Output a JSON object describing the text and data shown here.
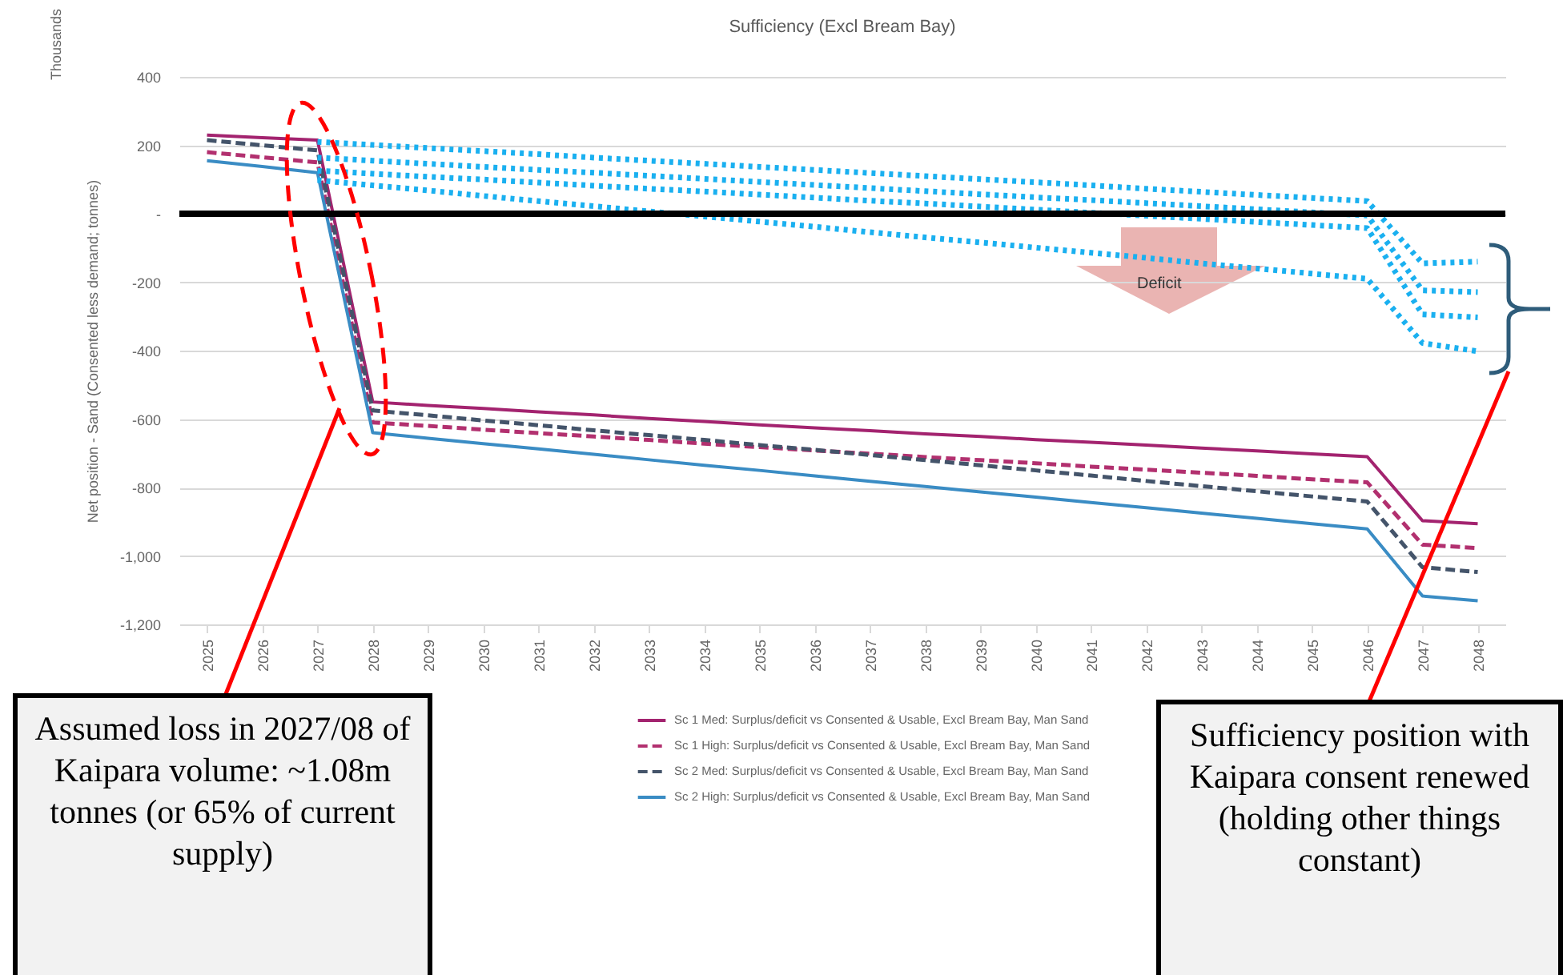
{
  "chart_data": {
    "type": "line",
    "title": "Sufficiency (Excl Bream Bay)",
    "ylabel": "Net position  - Sand (Consented less demand; tonnes)",
    "categories": [
      "2025",
      "2026",
      "2027",
      "2028",
      "2029",
      "2030",
      "2031",
      "2032",
      "2033",
      "2034",
      "2035",
      "2036",
      "2037",
      "2038",
      "2039",
      "2040",
      "2041",
      "2042",
      "2043",
      "2044",
      "2045",
      "2046",
      "2047",
      "2048"
    ],
    "series": [
      {
        "name": "Sc 1 Med:  Surplus/deficit vs Consented & Usable, Excl Bream Bay, Man Sand",
        "color": "#a3236f",
        "line_style": "solid",
        "values": [
          230,
          222,
          215,
          -550,
          -560,
          -569,
          -579,
          -588,
          -598,
          -607,
          -617,
          -626,
          -634,
          -643,
          -651,
          -660,
          -668,
          -676,
          -685,
          -693,
          -702,
          -710,
          -897,
          -906
        ]
      },
      {
        "name": "Sc 1 High:  Surplus/deficit vs Consented & Usable, Excl Bream Bay, Man Sand",
        "color": "#b2306f",
        "line_style": "dashed",
        "values": [
          180,
          165,
          150,
          -610,
          -620,
          -631,
          -641,
          -651,
          -661,
          -672,
          -682,
          -692,
          -701,
          -711,
          -720,
          -729,
          -739,
          -748,
          -757,
          -766,
          -776,
          -785,
          -967,
          -977
        ]
      },
      {
        "name": "Sc 2 Med:  Surplus/deficit vs Consented & Usable, Excl Bream Bay, Man Sand",
        "color": "#44546a",
        "line_style": "dashed",
        "values": [
          215,
          200,
          185,
          -575,
          -589,
          -604,
          -618,
          -633,
          -647,
          -661,
          -676,
          -690,
          -705,
          -720,
          -735,
          -750,
          -765,
          -781,
          -796,
          -811,
          -826,
          -841,
          -1033,
          -1047
        ]
      },
      {
        "name": "Sc 2 High:  Surplus/deficit vs Consented & Usable, Excl Bream Bay, Man Sand",
        "color": "#3a8cc4",
        "line_style": "solid",
        "values": [
          155,
          138,
          120,
          -640,
          -656,
          -672,
          -687,
          -703,
          -719,
          -735,
          -750,
          -766,
          -782,
          -797,
          -813,
          -828,
          -844,
          -859,
          -875,
          -890,
          -906,
          -921,
          -1117,
          -1131
        ]
      },
      {
        "color": "#1ab0f0",
        "line_style": "dotted",
        "values": [
          null,
          null,
          210,
          201,
          192,
          183,
          174,
          164,
          155,
          146,
          137,
          128,
          119,
          110,
          101,
          92,
          83,
          73,
          64,
          55,
          46,
          37,
          -145,
          -140
        ]
      },
      {
        "color": "#1ab0f0",
        "line_style": "dotted",
        "values": [
          null,
          null,
          164,
          155,
          146,
          137,
          128,
          120,
          111,
          102,
          93,
          84,
          75,
          66,
          57,
          48,
          40,
          31,
          22,
          13,
          4,
          -5,
          -224,
          -229
        ]
      },
      {
        "color": "#1ab0f0",
        "line_style": "dotted",
        "values": [
          null,
          null,
          126,
          117,
          108,
          100,
          91,
          82,
          73,
          65,
          56,
          47,
          38,
          30,
          21,
          12,
          3,
          -6,
          -15,
          -24,
          -33,
          -42,
          -294,
          -303
        ]
      },
      {
        "color": "#1ab0f0",
        "line_style": "dotted",
        "values": [
          null,
          null,
          98,
          83,
          68,
          52,
          37,
          22,
          7,
          -8,
          -23,
          -38,
          -54,
          -69,
          -84,
          -99,
          -114,
          -129,
          -145,
          -160,
          -175,
          -190,
          -378,
          -402
        ]
      }
    ],
    "ylim": [
      -1200,
      400
    ],
    "yticks": [
      {
        "value": -1200,
        "label": "-1,200"
      },
      {
        "value": -1000,
        "label": "-1,000"
      },
      {
        "value": -800,
        "label": "-800"
      },
      {
        "value": -600,
        "label": "-600"
      },
      {
        "value": -400,
        "label": "-400"
      },
      {
        "value": -200,
        "label": "-200"
      },
      {
        "value": 0,
        "label": "-"
      },
      200,
      400
    ],
    "ref_lines": [
      {
        "axis": "y",
        "value": 0,
        "color": "#000000"
      }
    ],
    "grid": "y",
    "legend": "bottom",
    "annotations": [
      "Thousands",
      "Deficit",
      "Assumed loss in 2027/08 of Kaipara volume: ~1.08m tonnes (or 65% of current supply)",
      "Sufficiency position with Kaipara consent renewed (holding other things constant)"
    ]
  }
}
